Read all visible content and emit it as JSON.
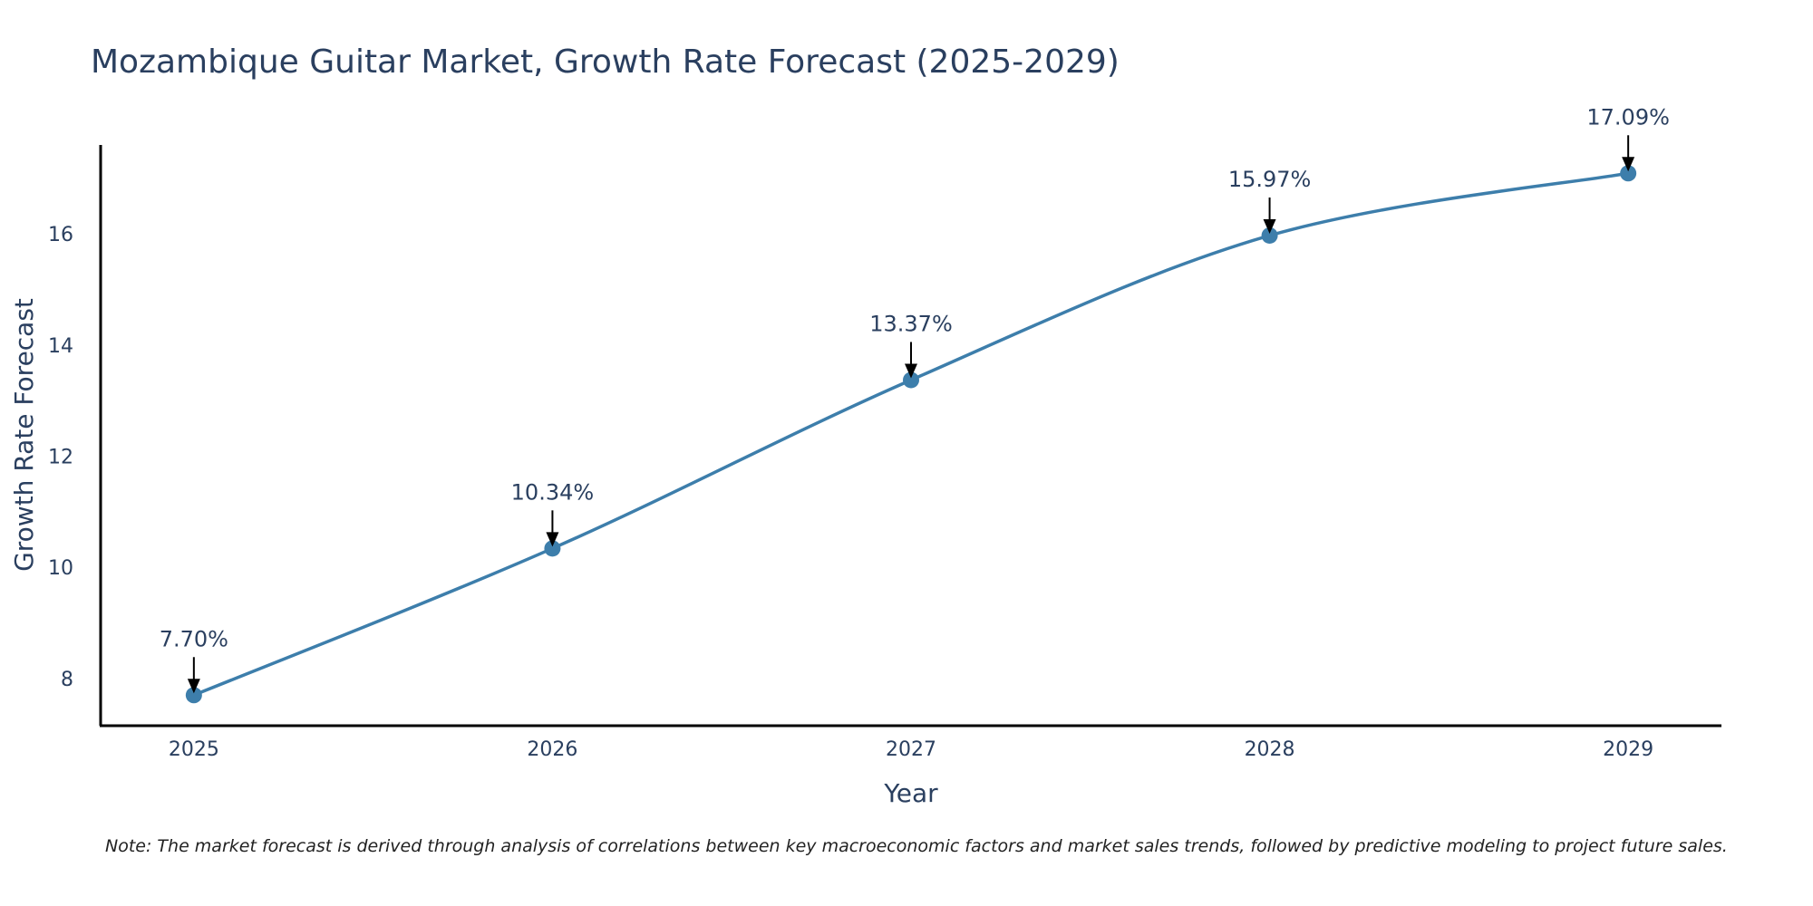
{
  "colors": {
    "line": "#3d7eab",
    "marker": "#3d7eab",
    "axis": "#000000",
    "arrow": "#000000",
    "text": "#2a3f5f"
  },
  "chart_data": {
    "type": "line",
    "title": "Mozambique Guitar Market, Growth Rate Forecast (2025-2029)",
    "xlabel": "Year",
    "ylabel": "Growth Rate Forecast",
    "categories": [
      "2025",
      "2026",
      "2027",
      "2028",
      "2029"
    ],
    "values": [
      7.7,
      10.34,
      13.37,
      15.97,
      17.09
    ],
    "data_labels": [
      "7.70%",
      "10.34%",
      "13.37%",
      "15.97%",
      "17.09%"
    ],
    "yticks": [
      8,
      10,
      12,
      14,
      16
    ],
    "ylim": [
      7.15,
      17.6
    ],
    "xlim": [
      -0.26,
      4.26
    ],
    "grid": false,
    "smooth": true,
    "note": "Note: The market forecast is derived through analysis of correlations between key macroeconomic factors and market sales trends, followed by predictive modeling to project future sales."
  }
}
